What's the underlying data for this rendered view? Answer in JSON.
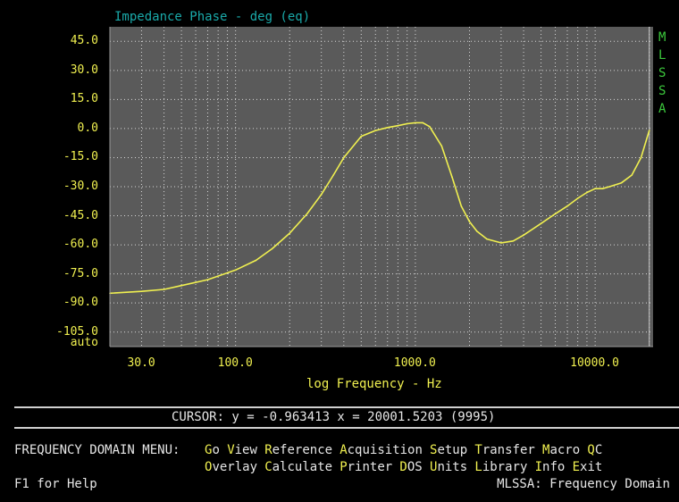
{
  "chart_data": {
    "type": "line",
    "title": "Impedance Phase - deg (eq)",
    "xlabel": "log Frequency - Hz",
    "ylabel": "",
    "xscale": "log",
    "ylim": [
      -112.5,
      52.5
    ],
    "xlim": [
      20,
      21000
    ],
    "y_tick_labels": [
      "45.0",
      "30.0",
      "15.0",
      "0.0",
      "-15.0",
      "-30.0",
      "-45.0",
      "-60.0",
      "-75.0",
      "-90.0",
      "-105.0",
      "auto"
    ],
    "x_tick_labels": [
      "30.0",
      "100.0",
      "1000.0",
      "10000.0"
    ],
    "grid": true,
    "colors": {
      "plot_bg": "#5a5a5a",
      "curve": "#f0f050",
      "grid": "#d8d8d8",
      "axis_text": "#f0f050",
      "title": "#1aa9a9"
    },
    "series": [
      {
        "x": [
          20,
          30,
          40,
          50,
          70,
          100,
          130,
          160,
          200,
          250,
          300,
          350,
          400,
          500,
          600,
          700,
          800,
          900,
          1000,
          1100,
          1200,
          1400,
          1600,
          1800,
          2000,
          2200,
          2500,
          3000,
          3500,
          4000,
          5000,
          6000,
          7000,
          8000,
          9000,
          10000,
          11000,
          12000,
          14000,
          16000,
          18000,
          20000
        ],
        "y": [
          -85,
          -84,
          -83,
          -81,
          -78,
          -73,
          -68,
          -62,
          -54,
          -44,
          -34,
          -24,
          -15,
          -4,
          -1,
          0.5,
          1.5,
          2.5,
          3,
          3,
          1,
          -9,
          -25,
          -40,
          -48,
          -53,
          -57,
          -59,
          -58,
          -55,
          -49,
          -44,
          -40,
          -36,
          -33,
          -31,
          -31,
          -30,
          -28,
          -24,
          -15,
          -1
        ]
      }
    ]
  },
  "side_label": [
    "M",
    "L",
    "S",
    "S",
    "A"
  ],
  "cursor": {
    "text": "CURSOR: y = -0.963413 x = 20001.5203 (9995)"
  },
  "menu": {
    "label": "FREQUENCY DOMAIN MENU:",
    "row1": [
      {
        "hot": "G",
        "rest": "o"
      },
      {
        "hot": "V",
        "rest": "iew"
      },
      {
        "hot": "R",
        "rest": "eference"
      },
      {
        "hot": "A",
        "rest": "cquisition"
      },
      {
        "hot": "S",
        "rest": "etup"
      },
      {
        "hot": "T",
        "rest": "ransfer"
      },
      {
        "hot": "M",
        "rest": "acro"
      },
      {
        "hot": "Q",
        "rest": "C"
      }
    ],
    "row2": [
      {
        "hot": "O",
        "rest": "verlay"
      },
      {
        "hot": "C",
        "rest": "alculate"
      },
      {
        "hot": "P",
        "rest": "rinter"
      },
      {
        "hot": "D",
        "rest": "OS"
      },
      {
        "hot": "U",
        "rest": "nits"
      },
      {
        "hot": "L",
        "rest": "ibrary"
      },
      {
        "hot": "I",
        "rest": "nfo"
      },
      {
        "hot": "E",
        "rest": "xit"
      }
    ]
  },
  "footer": {
    "help": "F1 for Help",
    "mode": "MLSSA: Frequency Domain"
  }
}
